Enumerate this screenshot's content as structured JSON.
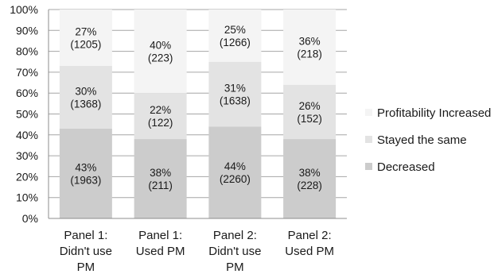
{
  "chart_data": {
    "type": "bar",
    "stacked": true,
    "title": "",
    "xlabel": "",
    "ylabel": "",
    "ylim": [
      0,
      100
    ],
    "y_ticks": [
      "0%",
      "10%",
      "20%",
      "30%",
      "40%",
      "50%",
      "60%",
      "70%",
      "80%",
      "90%",
      "100%"
    ],
    "grid": true,
    "legend_position": "right",
    "categories": [
      [
        "Panel 1:",
        "Didn't use",
        "PM"
      ],
      [
        "Panel 1:",
        "Used PM"
      ],
      [
        "Panel 2:",
        "Didn't use",
        "PM"
      ],
      [
        "Panel 2:",
        "Used PM"
      ]
    ],
    "series": [
      {
        "name": "Decreased",
        "color": "#cccccc",
        "values": [
          43,
          38,
          44,
          38
        ],
        "labels": [
          [
            "43%",
            "(1963)"
          ],
          [
            "38%",
            "(211)"
          ],
          [
            "44%",
            "(2260)"
          ],
          [
            "38%",
            "(228)"
          ]
        ]
      },
      {
        "name": "Stayed the same",
        "color": "#e3e3e3",
        "values": [
          30,
          22,
          31,
          26
        ],
        "labels": [
          [
            "30%",
            "(1368)"
          ],
          [
            "22%",
            "(122)"
          ],
          [
            "31%",
            "(1638)"
          ],
          [
            "26%",
            "(152)"
          ]
        ]
      },
      {
        "name": "Profitability Increased",
        "color": "#f4f4f4",
        "values": [
          27,
          40,
          25,
          36
        ],
        "labels": [
          [
            "27%",
            "(1205)"
          ],
          [
            "40%",
            "(223)"
          ],
          [
            "25%",
            "(1266)"
          ],
          [
            "36%",
            "(218)"
          ]
        ]
      }
    ],
    "legend_order": [
      "Profitability Increased",
      "Stayed the same",
      "Decreased"
    ]
  }
}
